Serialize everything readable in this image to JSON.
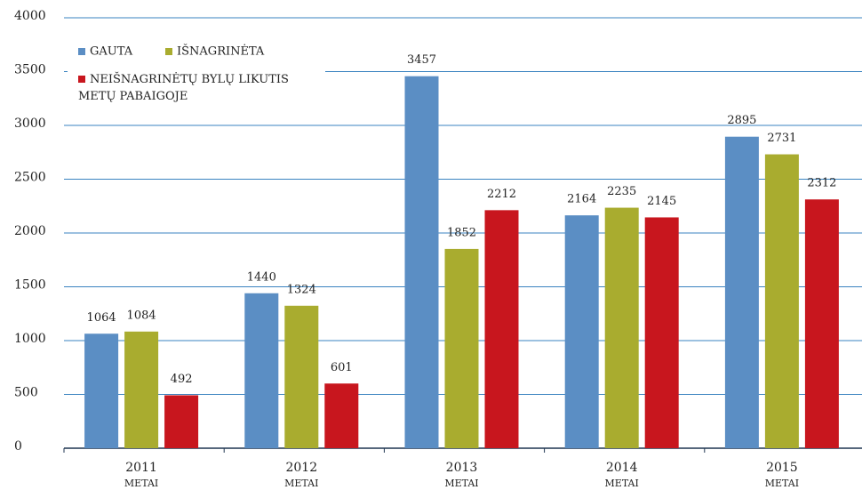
{
  "chart_data": {
    "type": "bar",
    "categories": [
      "2011",
      "2012",
      "2013",
      "2014",
      "2015"
    ],
    "xlabel": "METAI",
    "series": [
      {
        "name": "GAUTA",
        "color": "#5b8ec4",
        "values": [
          1064,
          1440,
          3457,
          2164,
          2895
        ]
      },
      {
        "name": "IŠNAGRINĖTA",
        "color": "#a9ac2f",
        "values": [
          1084,
          1324,
          1852,
          2235,
          2731
        ]
      },
      {
        "name": "NEIŠNAGRINĖTŲ BYLŲ LIKUTIS METŲ PABAIGOJE",
        "color": "#c8161e",
        "values": [
          492,
          601,
          2212,
          2145,
          2312
        ]
      }
    ],
    "ylim": [
      0,
      4000
    ],
    "yticks": [
      0,
      500,
      1000,
      1500,
      2000,
      2500,
      3000,
      3500,
      4000
    ],
    "grid": true,
    "legend": "upper left"
  }
}
